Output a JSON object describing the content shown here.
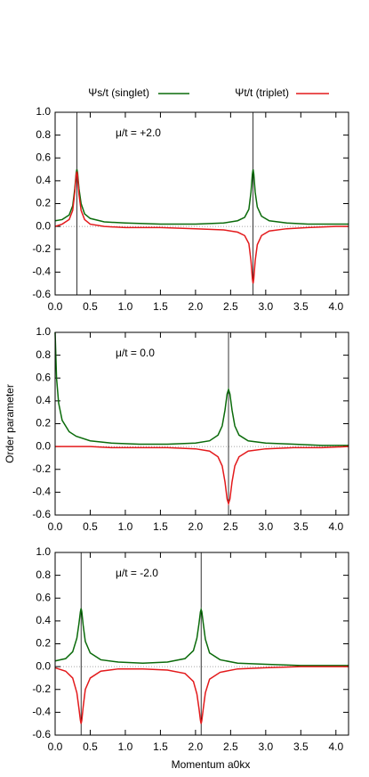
{
  "chart_data": [
    {
      "type": "line",
      "annotation": "μ/t = +2.0",
      "x": [
        0,
        0.1,
        0.2,
        0.25,
        0.28,
        0.3,
        0.31,
        0.32,
        0.34,
        0.37,
        0.42,
        0.5,
        0.7,
        1.0,
        1.5,
        2.0,
        2.4,
        2.6,
        2.7,
        2.76,
        2.79,
        2.81,
        2.82,
        2.83,
        2.85,
        2.88,
        2.94,
        3.05,
        3.3,
        3.6,
        4.0,
        4.18
      ],
      "series": [
        {
          "name": "Ψs/t  (singlet)",
          "color": "#0b6b0b",
          "values": [
            0.05,
            0.06,
            0.1,
            0.18,
            0.33,
            0.47,
            0.5,
            0.47,
            0.33,
            0.2,
            0.11,
            0.07,
            0.04,
            0.03,
            0.02,
            0.02,
            0.03,
            0.05,
            0.08,
            0.15,
            0.3,
            0.46,
            0.5,
            0.46,
            0.3,
            0.17,
            0.09,
            0.05,
            0.03,
            0.02,
            0.02,
            0.02
          ]
        },
        {
          "name": "Ψt/t  (triplet)",
          "color": "#e31a1c",
          "values": [
            0,
            0.02,
            0.06,
            0.14,
            0.3,
            0.45,
            0.48,
            0.44,
            0.28,
            0.14,
            0.06,
            0.02,
            0,
            -0.01,
            -0.01,
            -0.02,
            -0.03,
            -0.05,
            -0.08,
            -0.15,
            -0.3,
            -0.46,
            -0.5,
            -0.46,
            -0.3,
            -0.16,
            -0.08,
            -0.04,
            -0.02,
            -0.01,
            0,
            0
          ]
        }
      ],
      "vlines": [
        0.31,
        2.82
      ],
      "xlim": [
        0,
        4.18
      ],
      "ylim": [
        -0.6,
        1.0
      ],
      "xticks": [
        {
          "value": 0,
          "label": "0.0"
        },
        0.5,
        {
          "value": 1,
          "label": "1.0"
        },
        1.5,
        {
          "value": 2,
          "label": "2.0"
        },
        2.5,
        {
          "value": 3,
          "label": "3.0"
        },
        3.5,
        {
          "value": 4,
          "label": "4.0"
        }
      ],
      "yticks": [
        -0.6,
        -0.4,
        -0.2,
        {
          "value": 0,
          "label": "0.0"
        },
        0.2,
        0.4,
        0.6,
        0.8,
        {
          "value": 1,
          "label": "1.0"
        }
      ]
    },
    {
      "type": "line",
      "annotation": "μ/t = 0.0",
      "ylabel": "Order parameter",
      "x": [
        0,
        0.02,
        0.05,
        0.1,
        0.2,
        0.3,
        0.5,
        0.8,
        1.2,
        1.6,
        2.0,
        2.2,
        2.32,
        2.38,
        2.42,
        2.45,
        2.47,
        2.49,
        2.52,
        2.56,
        2.62,
        2.75,
        3.0,
        3.4,
        3.8,
        4.18
      ],
      "series": [
        {
          "name": "Ψs/t  (singlet)",
          "color": "#0b6b0b",
          "values": [
            1.0,
            0.6,
            0.38,
            0.23,
            0.13,
            0.09,
            0.05,
            0.03,
            0.02,
            0.02,
            0.03,
            0.05,
            0.1,
            0.18,
            0.32,
            0.46,
            0.5,
            0.46,
            0.32,
            0.18,
            0.1,
            0.05,
            0.03,
            0.02,
            0.01,
            0.01
          ]
        },
        {
          "name": "Ψt/t  (triplet)",
          "color": "#e31a1c",
          "values": [
            0,
            0,
            0,
            0,
            0,
            0,
            0,
            -0.01,
            -0.01,
            -0.01,
            -0.02,
            -0.04,
            -0.09,
            -0.17,
            -0.31,
            -0.46,
            -0.5,
            -0.46,
            -0.31,
            -0.17,
            -0.09,
            -0.04,
            -0.02,
            -0.01,
            -0.01,
            0
          ]
        }
      ],
      "vlines": [
        2.47
      ],
      "xlim": [
        0,
        4.18
      ],
      "ylim": [
        -0.6,
        1.0
      ],
      "xticks": [
        {
          "value": 0,
          "label": "0.0"
        },
        0.5,
        {
          "value": 1,
          "label": "1.0"
        },
        1.5,
        {
          "value": 2,
          "label": "2.0"
        },
        2.5,
        {
          "value": 3,
          "label": "3.0"
        },
        3.5,
        {
          "value": 4,
          "label": "4.0"
        }
      ],
      "yticks": [
        -0.6,
        -0.4,
        -0.2,
        {
          "value": 0,
          "label": "0.0"
        },
        0.2,
        0.4,
        0.6,
        0.8,
        {
          "value": 1,
          "label": "1.0"
        }
      ]
    },
    {
      "type": "line",
      "annotation": "μ/t = -2.0",
      "xlabel": "Momentum  a0kx",
      "x": [
        0,
        0.15,
        0.25,
        0.31,
        0.34,
        0.36,
        0.37,
        0.38,
        0.4,
        0.43,
        0.5,
        0.65,
        0.9,
        1.25,
        1.6,
        1.85,
        1.97,
        2.02,
        2.05,
        2.07,
        2.08,
        2.09,
        2.11,
        2.14,
        2.2,
        2.35,
        2.6,
        3.0,
        3.5,
        4.18
      ],
      "series": [
        {
          "name": "Ψs/t  (singlet)",
          "color": "#0b6b0b",
          "values": [
            0.05,
            0.07,
            0.13,
            0.25,
            0.38,
            0.48,
            0.51,
            0.48,
            0.36,
            0.22,
            0.12,
            0.06,
            0.04,
            0.03,
            0.04,
            0.07,
            0.14,
            0.25,
            0.38,
            0.48,
            0.5,
            0.48,
            0.38,
            0.24,
            0.12,
            0.06,
            0.03,
            0.02,
            0.01,
            0.01
          ]
        },
        {
          "name": "Ψt/t  (triplet)",
          "color": "#e31a1c",
          "values": [
            -0.01,
            -0.04,
            -0.1,
            -0.23,
            -0.37,
            -0.47,
            -0.5,
            -0.47,
            -0.35,
            -0.2,
            -0.1,
            -0.04,
            -0.02,
            -0.02,
            -0.03,
            -0.06,
            -0.13,
            -0.24,
            -0.37,
            -0.47,
            -0.5,
            -0.47,
            -0.37,
            -0.23,
            -0.11,
            -0.05,
            -0.02,
            -0.01,
            0,
            0
          ]
        }
      ],
      "vlines": [
        0.37,
        2.08
      ],
      "xlim": [
        0,
        4.18
      ],
      "ylim": [
        -0.6,
        1.0
      ],
      "xticks": [
        {
          "value": 0,
          "label": "0.0"
        },
        0.5,
        {
          "value": 1,
          "label": "1.0"
        },
        1.5,
        {
          "value": 2,
          "label": "2.0"
        },
        2.5,
        {
          "value": 3,
          "label": "3.0"
        },
        3.5,
        {
          "value": 4,
          "label": "4.0"
        }
      ],
      "yticks": [
        -0.6,
        -0.4,
        -0.2,
        {
          "value": 0,
          "label": "0.0"
        },
        0.2,
        0.4,
        0.6,
        0.8,
        {
          "value": 1,
          "label": "1.0"
        }
      ]
    }
  ]
}
